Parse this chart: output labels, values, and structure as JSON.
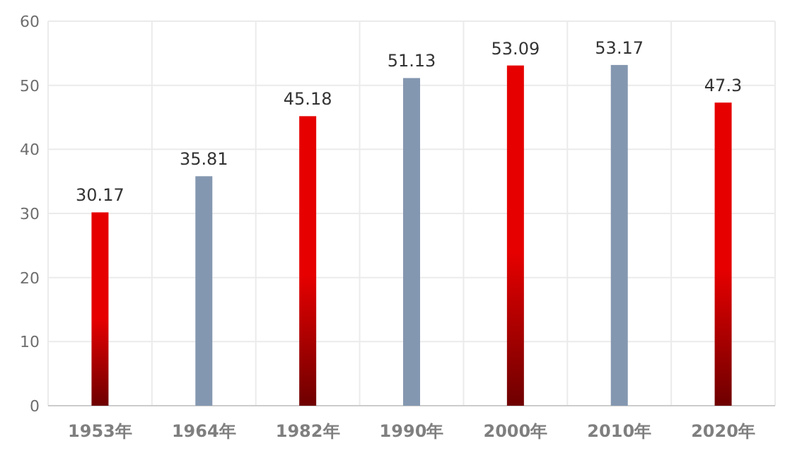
{
  "chart_data": {
    "type": "bar",
    "categories": [
      "1953年",
      "1964年",
      "1982年",
      "1990年",
      "2000年",
      "2010年",
      "2020年"
    ],
    "values": [
      30.17,
      35.81,
      45.18,
      51.13,
      53.09,
      53.17,
      47.3
    ],
    "colors": [
      "#e60000",
      "#8497b0",
      "#e60000",
      "#8497b0",
      "#e60000",
      "#8497b0",
      "#e60000"
    ],
    "ylim": [
      0,
      60
    ],
    "yticks": [
      0,
      10,
      20,
      30,
      40,
      50,
      60
    ],
    "grid": true,
    "data_labels": true
  }
}
